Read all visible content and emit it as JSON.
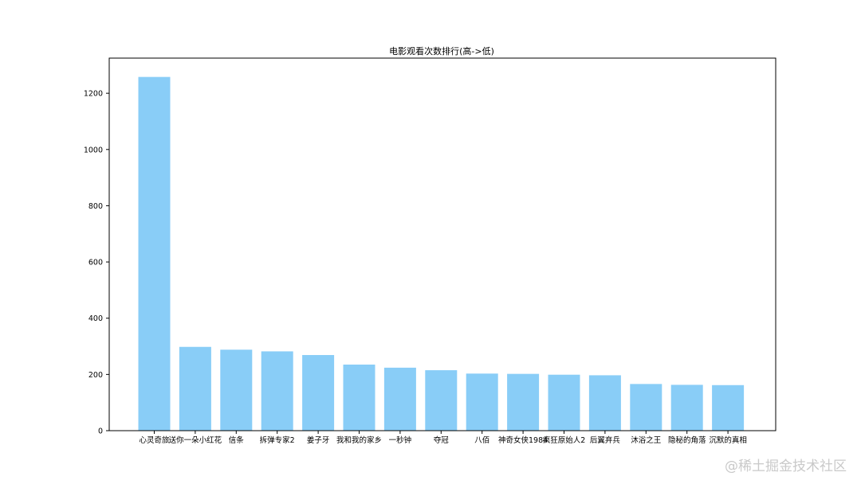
{
  "chart_data": {
    "type": "bar",
    "title": "电影观看次数排行(高->低)",
    "xlabel": "",
    "ylabel": "",
    "categories": [
      "心灵奇旅",
      "送你一朵小红花",
      "信条",
      "拆弹专家2",
      "姜子牙",
      "我和我的家乡",
      "一秒钟",
      "夺冠",
      "八佰",
      "神奇女侠1984",
      "疯狂原始人2",
      "后翼弃兵",
      "沐浴之王",
      "隐秘的角落",
      "沉默的真相"
    ],
    "values": [
      1258,
      298,
      288,
      282,
      269,
      235,
      224,
      215,
      203,
      202,
      199,
      197,
      166,
      163,
      162
    ],
    "ylim": [
      0,
      1325
    ],
    "yticks": [
      0,
      200,
      400,
      600,
      800,
      1000,
      1200
    ],
    "bar_color": "#89cdf7",
    "grid": false
  },
  "watermark": "@稀土掘金技术社区"
}
